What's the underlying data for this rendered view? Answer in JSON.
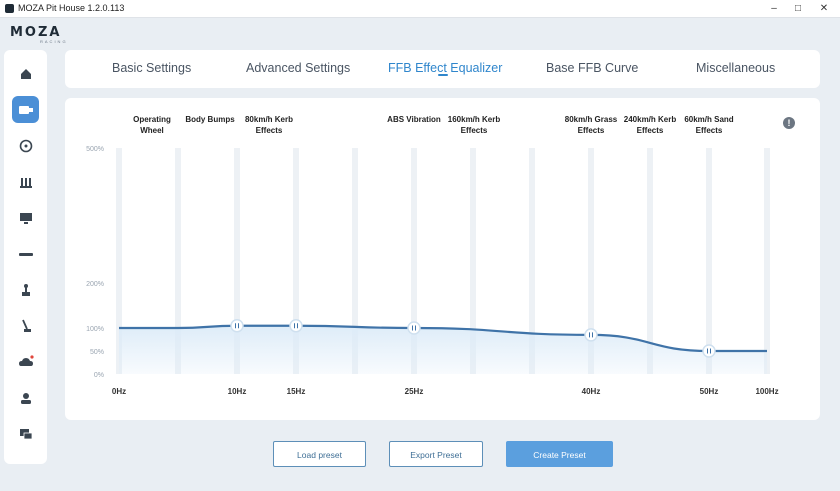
{
  "window": {
    "title": "MOZA Pit House 1.2.0.113",
    "controls": [
      "minimize-icon",
      "maximize-icon",
      "close-icon"
    ]
  },
  "logo": {
    "brand": "MOZA",
    "sub": "RACING"
  },
  "sidebar": {
    "items": [
      {
        "icon": "home-icon",
        "active": false
      },
      {
        "icon": "wheelbase-icon",
        "active": true
      },
      {
        "icon": "steering-wheel-icon",
        "active": false
      },
      {
        "icon": "pedals-icon",
        "active": false
      },
      {
        "icon": "dashboard-icon",
        "active": false
      },
      {
        "icon": "handbrake-bar-icon",
        "active": false
      },
      {
        "icon": "shifter-icon",
        "active": false
      },
      {
        "icon": "handbrake-lever-icon",
        "active": false
      },
      {
        "icon": "cloud-update-icon",
        "active": false
      },
      {
        "icon": "user-icon",
        "active": false
      },
      {
        "icon": "chat-icon",
        "active": false
      }
    ]
  },
  "tabs": [
    {
      "label": "Basic Settings",
      "active": false
    },
    {
      "label": "Advanced Settings",
      "active": false
    },
    {
      "label": "FFB Effect Equalizer",
      "active": true
    },
    {
      "label": "Base FFB Curve",
      "active": false
    },
    {
      "label": "Miscellaneous",
      "active": false
    }
  ],
  "band_labels": [
    {
      "line1": "Operating",
      "line2": "Wheel"
    },
    {
      "line1": "Body Bumps",
      "line2": ""
    },
    {
      "line1": "80km/h Kerb",
      "line2": "Effects"
    },
    {
      "line1": "ABS Vibration",
      "line2": ""
    },
    {
      "line1": "160km/h Kerb",
      "line2": "Effects"
    },
    {
      "line1": "80km/h Grass",
      "line2": "Effects"
    },
    {
      "line1": "240km/h Kerb",
      "line2": "Effects"
    },
    {
      "line1": "60km/h Sand",
      "line2": "Effects"
    }
  ],
  "colors": {
    "accent": "#2f86cc",
    "curve": "#3f73a8",
    "fill": "#dcebf8"
  },
  "chart_data": {
    "type": "line",
    "title": "",
    "xlabel": "",
    "ylabel": "",
    "y_ticks": [
      "500%",
      "200%",
      "100%",
      "50%",
      "0%"
    ],
    "x_ticks": [
      "0Hz",
      "10Hz",
      "15Hz",
      "25Hz",
      "40Hz",
      "50Hz",
      "100Hz"
    ],
    "x_tick_values": [
      0,
      10,
      15,
      25,
      40,
      50,
      100
    ],
    "series": [
      {
        "x": [
          0,
          5,
          10,
          15,
          25,
          40,
          50,
          100
        ],
        "y": [
          100,
          100,
          105,
          105,
          100,
          85,
          50,
          50
        ]
      }
    ],
    "handles_at": [
      10,
      15,
      25,
      40,
      50
    ],
    "grid": true
  },
  "buttons": {
    "load": "Load preset",
    "export": "Export Preset",
    "create": "Create Preset"
  }
}
